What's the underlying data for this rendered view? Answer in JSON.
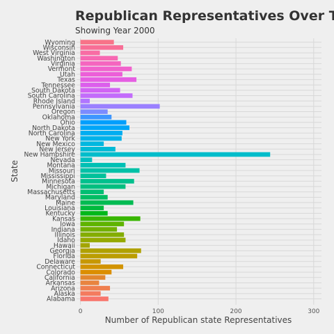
{
  "chart_data": {
    "type": "bar",
    "orientation": "horizontal",
    "title": "Republican Representatives Over Time",
    "subtitle": "Showing Year 2000",
    "xlabel": "Number of Republican state Representatives",
    "ylabel": "State",
    "xlim": [
      -5,
      310
    ],
    "xticks": [
      0,
      100,
      200,
      300
    ],
    "grid": true,
    "legend": "none",
    "categories": [
      "Alabama",
      "Alaska",
      "Arizona",
      "Arkansas",
      "California",
      "Colorado",
      "Connecticut",
      "Delaware",
      "Florida",
      "Georgia",
      "Hawaii",
      "Idaho",
      "Illinois",
      "Indiana",
      "Iowa",
      "Kansas",
      "Kentucky",
      "Louisiana",
      "Maine",
      "Maryland",
      "Massachusetts",
      "Michigan",
      "Minnesota",
      "Mississippi",
      "Missouri",
      "Montana",
      "Nevada",
      "New Hampshire",
      "New Jersey",
      "New Mexico",
      "New York",
      "North Carolina",
      "North Dakota",
      "Ohio",
      "Oklahoma",
      "Oregon",
      "Pennsylvania",
      "Rhode Island",
      "South Carolina",
      "South Dakota",
      "Tennessee",
      "Texas",
      "Utah",
      "Vermont",
      "Virginia",
      "Washington",
      "West Virginia",
      "Wisconsin",
      "Wyoming"
    ],
    "values": [
      36,
      26,
      38,
      24,
      32,
      40,
      55,
      26,
      73,
      78,
      12,
      58,
      56,
      47,
      56,
      77,
      35,
      30,
      68,
      35,
      30,
      58,
      69,
      33,
      76,
      58,
      15,
      244,
      45,
      30,
      53,
      54,
      63,
      59,
      40,
      35,
      102,
      12,
      67,
      51,
      38,
      72,
      54,
      66,
      52,
      48,
      25,
      55,
      43
    ],
    "colors": [
      "#F8766D",
      "#F47B5F",
      "#EF7F4F",
      "#E8843F",
      "#E2872F",
      "#DB8E00",
      "#D29300",
      "#C79800",
      "#BB9D00",
      "#B0A100",
      "#A3A500",
      "#95A900",
      "#84AD00",
      "#72B000",
      "#5EB300",
      "#39B600",
      "#00B81A",
      "#00BA3C",
      "#00BB52",
      "#00BD63",
      "#00BE72",
      "#00BF80",
      "#00C08D",
      "#00C19A",
      "#00C1A7",
      "#00C0B4",
      "#00BFC0",
      "#00BDCB",
      "#00BAD6",
      "#00B7E0",
      "#00B2E9",
      "#00ADF1",
      "#00A6F8",
      "#009FFD",
      "#3D96FF",
      "#7B8BFF",
      "#9A80FF",
      "#B075FF",
      "#C36CFB",
      "#D164F4",
      "#DC5EEC",
      "#E55EE2",
      "#EC5FD8",
      "#F162CC",
      "#F565BF",
      "#F768B2",
      "#F86CA4",
      "#F86E96",
      "#F87388"
    ]
  }
}
